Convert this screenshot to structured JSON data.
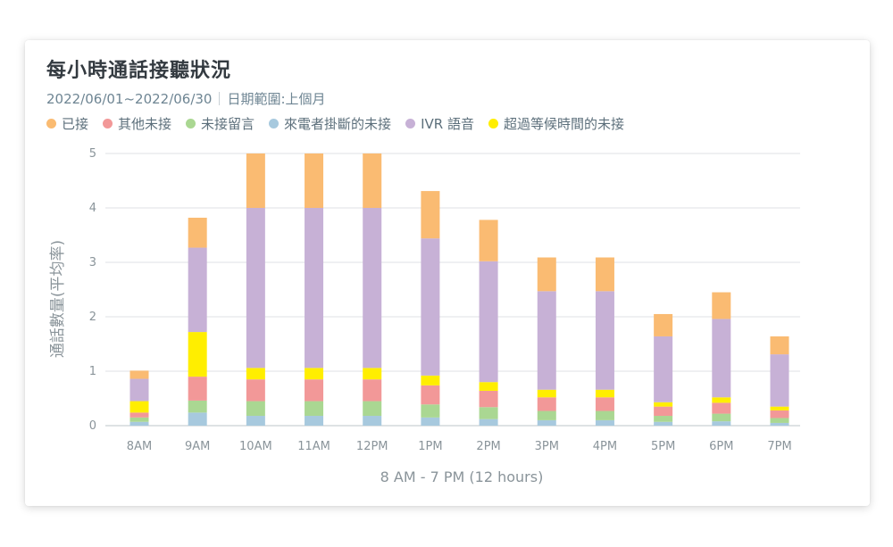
{
  "title": "每小時通話接聽狀況",
  "date_range": "2022/06/01~2022/06/30",
  "range_label": "日期範圍:上個月",
  "chart_data": {
    "type": "bar",
    "stacked": true,
    "categories": [
      "8AM",
      "9AM",
      "10AM",
      "11AM",
      "12PM",
      "1PM",
      "2PM",
      "3PM",
      "4PM",
      "5PM",
      "6PM",
      "7PM"
    ],
    "series": [
      {
        "name": "來電者掛斷的未接",
        "color": "#a7c9de",
        "values": [
          0.07,
          0.24,
          0.18,
          0.18,
          0.18,
          0.15,
          0.12,
          0.1,
          0.1,
          0.07,
          0.08,
          0.05
        ]
      },
      {
        "name": "未接留言",
        "color": "#aad792",
        "values": [
          0.08,
          0.22,
          0.27,
          0.27,
          0.27,
          0.24,
          0.22,
          0.17,
          0.17,
          0.11,
          0.14,
          0.09
        ]
      },
      {
        "name": "其他未接",
        "color": "#f29898",
        "values": [
          0.09,
          0.44,
          0.4,
          0.4,
          0.4,
          0.35,
          0.3,
          0.25,
          0.25,
          0.17,
          0.2,
          0.14
        ]
      },
      {
        "name": "超過等候時間的未接",
        "color": "#ffee00",
        "values": [
          0.21,
          0.82,
          0.21,
          0.21,
          0.21,
          0.18,
          0.16,
          0.14,
          0.14,
          0.08,
          0.1,
          0.07
        ]
      },
      {
        "name": "IVR 語音",
        "color": "#c7b1d6",
        "values": [
          0.41,
          1.55,
          2.94,
          2.94,
          2.94,
          2.52,
          2.22,
          1.81,
          1.81,
          1.21,
          1.44,
          0.96
        ]
      },
      {
        "name": "已接",
        "color": "#fabb72",
        "values": [
          0.15,
          0.55,
          1.0,
          1.0,
          1.0,
          0.87,
          0.76,
          0.62,
          0.62,
          0.41,
          0.49,
          0.33
        ]
      }
    ],
    "legend_order": [
      "已接",
      "其他未接",
      "未接留言",
      "來電者掛斷的未接",
      "IVR 語音",
      "超過等候時間的未接"
    ],
    "xlabel": "8 AM - 7 PM (12 hours)",
    "ylabel": "通話數量(平均率)",
    "ylim": [
      0,
      5
    ],
    "yticks": [
      0,
      1,
      2,
      3,
      4,
      5
    ],
    "grid": true,
    "legend_position": "top-left"
  }
}
